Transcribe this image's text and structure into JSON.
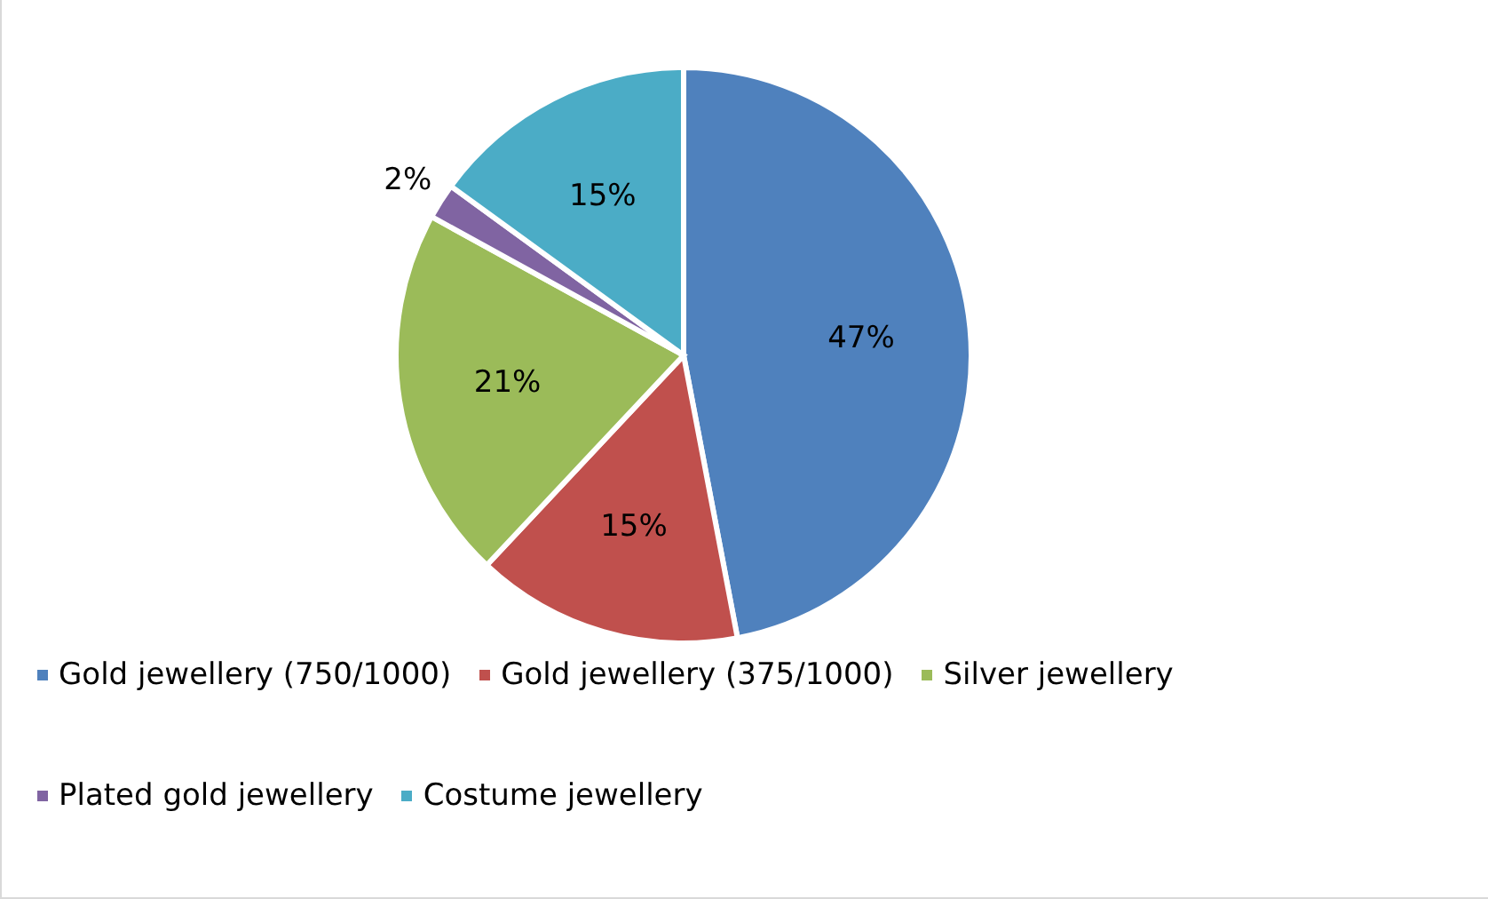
{
  "chart_data": {
    "type": "pie",
    "categories": [
      "Gold jewellery (750/1000)",
      "Gold jewellery (375/1000)",
      "Silver jewellery",
      "Plated gold jewellery",
      "Costume jewellery"
    ],
    "values": [
      47,
      15,
      21,
      2,
      15
    ],
    "colors": [
      "#4f81bd",
      "#c0504d",
      "#9bbb59",
      "#8064a2",
      "#4bacc6"
    ],
    "value_labels": [
      "47%",
      "15%",
      "21%",
      "2%",
      "15%"
    ],
    "legend": "bottom"
  }
}
